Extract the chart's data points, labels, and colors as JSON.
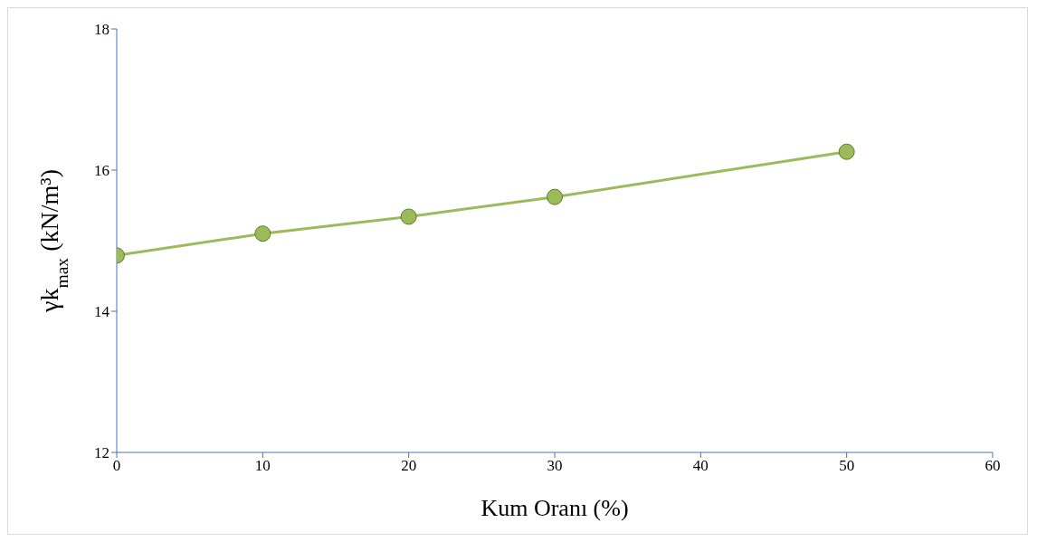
{
  "chart_data": {
    "type": "line",
    "xlabel": "Kum Oranı (%)",
    "ylabel": "γk$_{max}$ (kN/m³)",
    "x": [
      0,
      10,
      20,
      30,
      50
    ],
    "series": [
      {
        "color": "#9bbb59",
        "values": [
          14.79,
          15.1,
          15.34,
          15.62,
          16.26
        ]
      }
    ],
    "xlim": [
      0,
      60
    ],
    "xticks": [
      0,
      10,
      20,
      30,
      40,
      50,
      60
    ],
    "ylim": [
      12,
      18
    ],
    "yticks": [
      12,
      14,
      16,
      18
    ],
    "grid": false,
    "legend": false,
    "marker": "circle",
    "line_style": "solid"
  }
}
